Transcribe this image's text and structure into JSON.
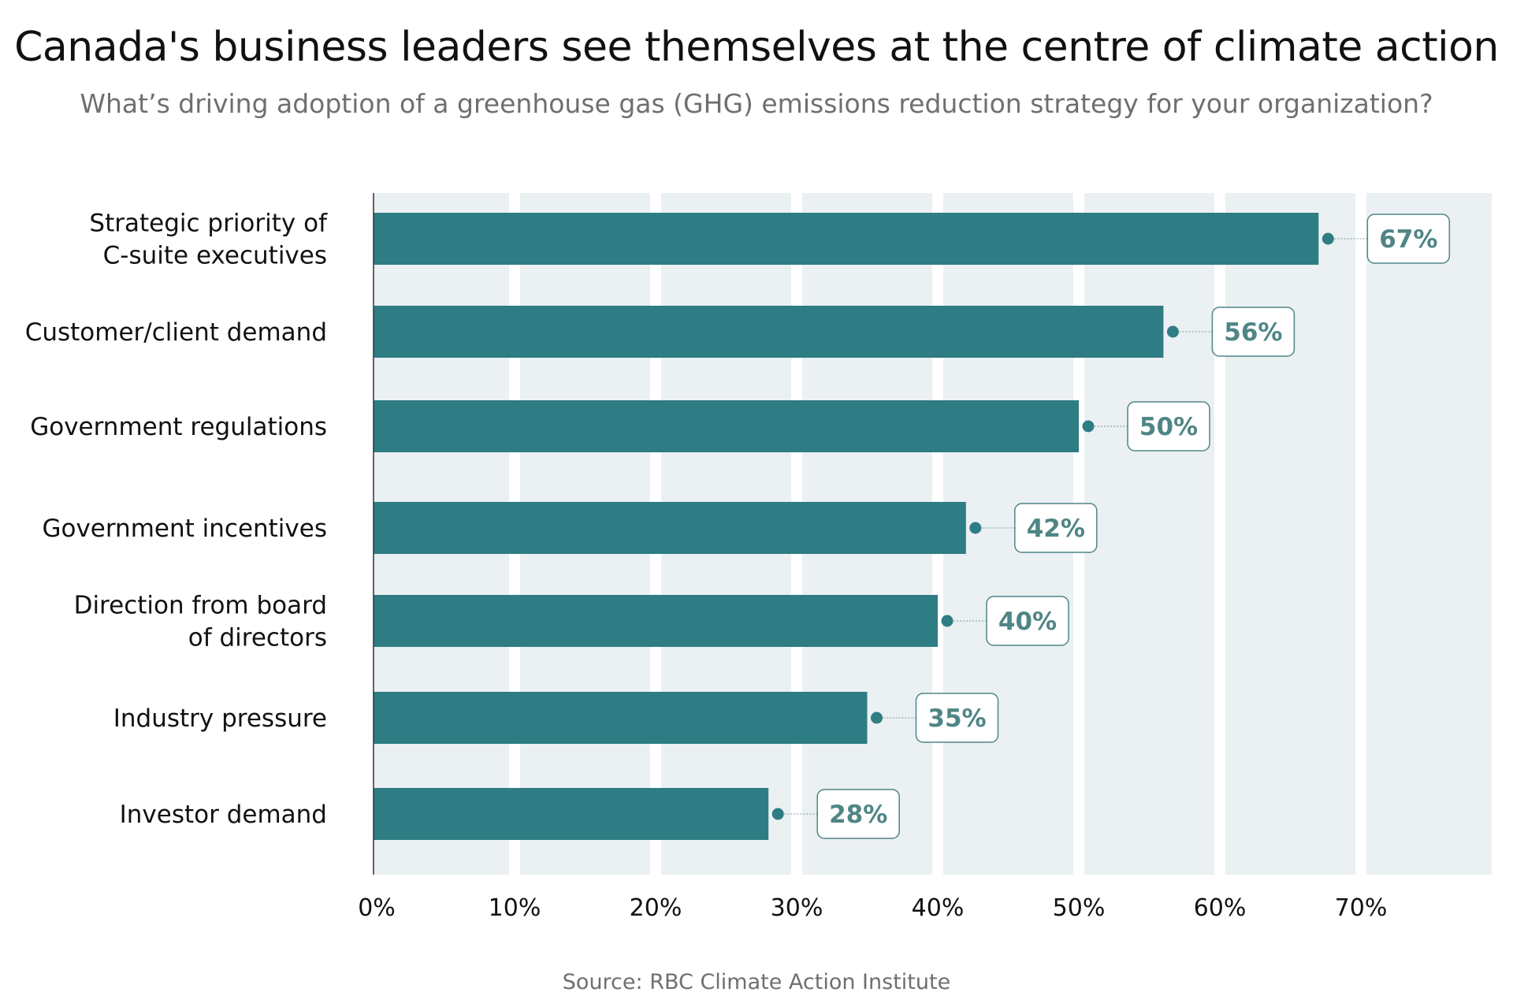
{
  "chart_data": {
    "type": "bar",
    "orientation": "horizontal",
    "title": "Canada's business leaders see themselves at the centre of climate action",
    "subtitle": "What’s driving adoption of a greenhouse gas (GHG) emissions reduction strategy for your organization?",
    "categories": [
      [
        "Strategic priority of",
        "C-suite executives"
      ],
      [
        "Customer/client demand"
      ],
      [
        "Government regulations"
      ],
      [
        "Government incentives"
      ],
      [
        "Direction from board",
        "of directors"
      ],
      [
        "Industry pressure"
      ],
      [
        "Investor demand"
      ]
    ],
    "values": [
      67,
      56,
      50,
      42,
      40,
      35,
      28
    ],
    "data_labels": [
      "67%",
      "56%",
      "50%",
      "42%",
      "40%",
      "35%",
      "28%"
    ],
    "x_ticks": [
      "0%",
      "10%",
      "20%",
      "30%",
      "40%",
      "50%",
      "60%",
      "70%"
    ],
    "xlim": [
      0,
      80
    ],
    "source": "Source: RBC Climate Action Institute",
    "colors": {
      "bar": "#2e7c84",
      "label_text": "#4f8585",
      "label_border": "#4f8585",
      "band": "#ebf0f3",
      "axis": "#333333"
    }
  }
}
